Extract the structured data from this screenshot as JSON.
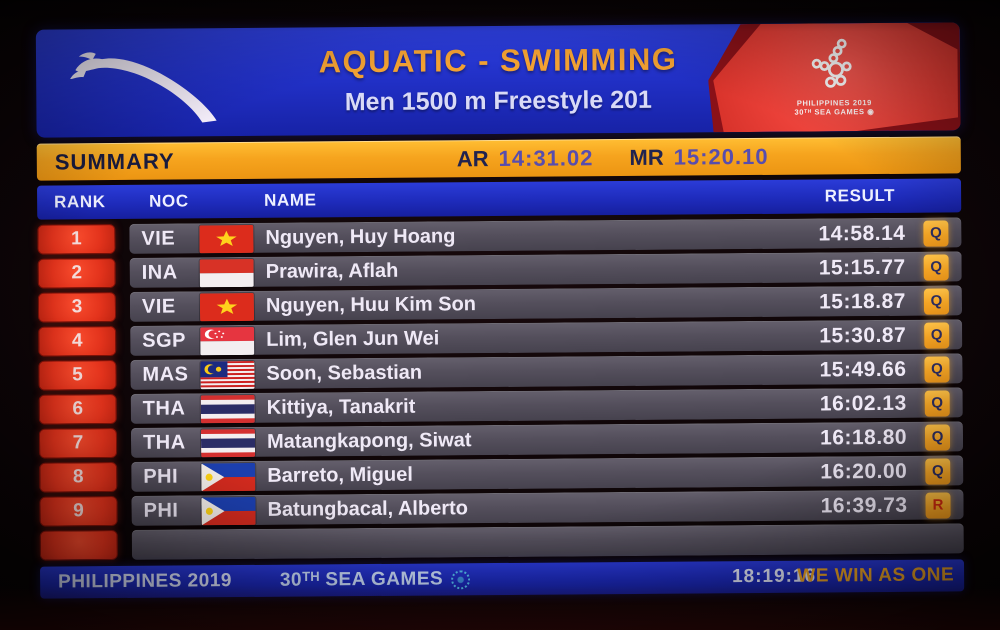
{
  "header": {
    "title": "AQUATIC - SWIMMING",
    "subtitle": "Men 1500 m Freestyle 201",
    "logo_badge": {
      "line1": "PHILIPPINES 2019",
      "line2": "30ᵀᴴ SEA GAMES ◉"
    }
  },
  "summary": {
    "label": "SUMMARY",
    "records": [
      {
        "label": "AR",
        "value": "14:31.02"
      },
      {
        "label": "MR",
        "value": "15:20.10"
      }
    ]
  },
  "table": {
    "columns": {
      "rank": "RANK",
      "noc": "NOC",
      "name": "NAME",
      "result": "RESULT"
    },
    "rows": [
      {
        "rank": "1",
        "noc": "VIE",
        "flag": "vie",
        "name": "Nguyen, Huy Hoang",
        "result": "14:58.14",
        "badge": "Q"
      },
      {
        "rank": "2",
        "noc": "INA",
        "flag": "ina",
        "name": "Prawira, Aflah",
        "result": "15:15.77",
        "badge": "Q"
      },
      {
        "rank": "3",
        "noc": "VIE",
        "flag": "vie",
        "name": "Nguyen, Huu Kim Son",
        "result": "15:18.87",
        "badge": "Q"
      },
      {
        "rank": "4",
        "noc": "SGP",
        "flag": "sgp",
        "name": "Lim, Glen Jun Wei",
        "result": "15:30.87",
        "badge": "Q"
      },
      {
        "rank": "5",
        "noc": "MAS",
        "flag": "mas",
        "name": "Soon, Sebastian",
        "result": "15:49.66",
        "badge": "Q"
      },
      {
        "rank": "6",
        "noc": "THA",
        "flag": "tha",
        "name": "Kittiya, Tanakrit",
        "result": "16:02.13",
        "badge": "Q"
      },
      {
        "rank": "7",
        "noc": "THA",
        "flag": "tha",
        "name": "Matangkapong, Siwat",
        "result": "16:18.80",
        "badge": "Q"
      },
      {
        "rank": "8",
        "noc": "PHI",
        "flag": "phi",
        "name": "Barreto, Miguel",
        "result": "16:20.00",
        "badge": "Q"
      },
      {
        "rank": "9",
        "noc": "PHI",
        "flag": "phi",
        "name": "Batungbacal, Alberto",
        "result": "16:39.73",
        "badge": "R"
      },
      {
        "rank": "",
        "noc": "",
        "flag": "",
        "name": "",
        "result": "",
        "badge": ""
      }
    ]
  },
  "footer": {
    "host": "PHILIPPINES 2019",
    "event": "30ᵀᴴ SEA GAMES",
    "time": "18:19:16",
    "slogan": "WE WIN AS ONE"
  },
  "colors": {
    "header_blue": "#2433cd",
    "bar_orange": "#f6a41e",
    "rank_red": "#e8381f",
    "row_gray": "#544f5b",
    "badge_orange": "#f5ab2e",
    "record_violet": "#584dad",
    "slogan_yellow": "#f3a826"
  }
}
